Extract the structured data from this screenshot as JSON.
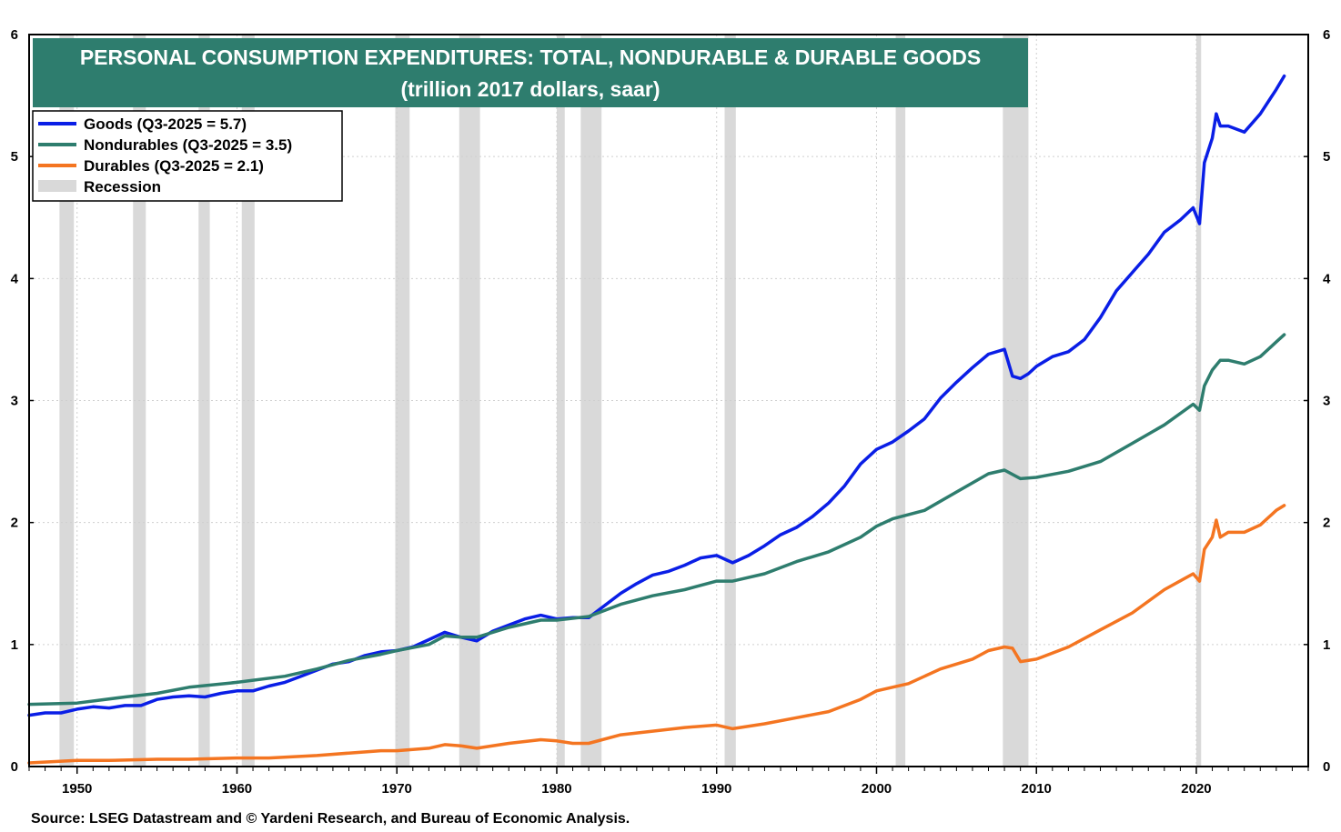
{
  "chart_data": {
    "type": "line",
    "title": "PERSONAL CONSUMPTION EXPENDITURES: TOTAL, NONDURABLE & DURABLE GOODS",
    "subtitle": "(trillion 2017 dollars, saar)",
    "source": "Source: LSEG Datastream and © Yardeni Research, and Bureau of Economic Analysis.",
    "xlim": [
      1947,
      2027
    ],
    "ylim": [
      0,
      6
    ],
    "x_ticks": [
      1950,
      1960,
      1970,
      1980,
      1990,
      2000,
      2010,
      2020
    ],
    "y_ticks": [
      0,
      1,
      2,
      3,
      4,
      5,
      6
    ],
    "grid": true,
    "legend_position": "top-left",
    "recessions": [
      [
        1948.9,
        1949.8
      ],
      [
        1953.5,
        1954.3
      ],
      [
        1957.6,
        1958.3
      ],
      [
        1960.3,
        1961.1
      ],
      [
        1969.9,
        1970.8
      ],
      [
        1973.9,
        1975.2
      ],
      [
        1980.0,
        1980.5
      ],
      [
        1981.5,
        1982.8
      ],
      [
        1990.5,
        1991.2
      ],
      [
        2001.2,
        2001.8
      ],
      [
        2007.9,
        2009.5
      ],
      [
        2020.0,
        2020.3
      ]
    ],
    "colors": {
      "goods": "#0a1ee6",
      "nondurables": "#2e7d6e",
      "durables": "#f47521",
      "recession": "#d9d9d9",
      "title_bg": "#2e7d6e"
    },
    "legend": {
      "goods": "Goods  (Q3-2025 = 5.7)",
      "nondurables": "Nondurables (Q3-2025 = 3.5)",
      "durables": "Durables (Q3-2025 = 2.1)",
      "recession": "Recession"
    },
    "series": [
      {
        "key": "goods",
        "x": [
          1947,
          1948,
          1949,
          1950,
          1951,
          1952,
          1953,
          1954,
          1955,
          1956,
          1957,
          1958,
          1959,
          1960,
          1961,
          1962,
          1963,
          1964,
          1965,
          1966,
          1967,
          1968,
          1969,
          1970,
          1971,
          1972,
          1973,
          1974,
          1975,
          1976,
          1977,
          1978,
          1979,
          1980,
          1981,
          1982,
          1983,
          1984,
          1985,
          1986,
          1987,
          1988,
          1989,
          1990,
          1991,
          1992,
          1993,
          1994,
          1995,
          1996,
          1997,
          1998,
          1999,
          2000,
          2001,
          2002,
          2003,
          2004,
          2005,
          2006,
          2007,
          2008,
          2008.5,
          2009,
          2009.5,
          2010,
          2011,
          2012,
          2013,
          2014,
          2015,
          2016,
          2017,
          2018,
          2019,
          2019.8,
          2020.2,
          2020.5,
          2021,
          2021.25,
          2021.5,
          2022,
          2023,
          2024,
          2025,
          2025.5
        ],
        "values": [
          0.42,
          0.44,
          0.44,
          0.47,
          0.49,
          0.48,
          0.5,
          0.5,
          0.55,
          0.57,
          0.58,
          0.57,
          0.6,
          0.62,
          0.62,
          0.66,
          0.69,
          0.74,
          0.79,
          0.84,
          0.86,
          0.91,
          0.94,
          0.95,
          0.98,
          1.04,
          1.1,
          1.06,
          1.03,
          1.11,
          1.16,
          1.21,
          1.24,
          1.21,
          1.22,
          1.22,
          1.32,
          1.42,
          1.5,
          1.57,
          1.6,
          1.65,
          1.71,
          1.73,
          1.67,
          1.73,
          1.81,
          1.9,
          1.96,
          2.05,
          2.16,
          2.3,
          2.48,
          2.6,
          2.66,
          2.75,
          2.85,
          3.02,
          3.15,
          3.27,
          3.38,
          3.42,
          3.2,
          3.18,
          3.22,
          3.28,
          3.36,
          3.4,
          3.5,
          3.68,
          3.9,
          4.05,
          4.2,
          4.38,
          4.48,
          4.58,
          4.45,
          4.95,
          5.15,
          5.35,
          5.25,
          5.25,
          5.2,
          5.35,
          5.55,
          5.66
        ]
      },
      {
        "key": "nondurables",
        "x": [
          1947,
          1950,
          1953,
          1955,
          1957,
          1960,
          1963,
          1965,
          1967,
          1969,
          1970,
          1972,
          1973,
          1974,
          1975,
          1977,
          1979,
          1980,
          1982,
          1984,
          1986,
          1988,
          1990,
          1991,
          1993,
          1995,
          1997,
          1999,
          2000,
          2001,
          2003,
          2005,
          2007,
          2008,
          2009,
          2010,
          2012,
          2014,
          2016,
          2018,
          2019.8,
          2020.2,
          2020.5,
          2021,
          2021.5,
          2022,
          2023,
          2024,
          2025,
          2025.5
        ],
        "values": [
          0.51,
          0.52,
          0.57,
          0.6,
          0.65,
          0.69,
          0.74,
          0.8,
          0.87,
          0.92,
          0.95,
          1.0,
          1.07,
          1.06,
          1.06,
          1.14,
          1.2,
          1.2,
          1.23,
          1.33,
          1.4,
          1.45,
          1.52,
          1.52,
          1.58,
          1.68,
          1.76,
          1.88,
          1.97,
          2.03,
          2.1,
          2.25,
          2.4,
          2.43,
          2.36,
          2.37,
          2.42,
          2.5,
          2.65,
          2.8,
          2.97,
          2.92,
          3.12,
          3.25,
          3.33,
          3.33,
          3.3,
          3.36,
          3.48,
          3.54
        ]
      },
      {
        "key": "durables",
        "x": [
          1947,
          1950,
          1952,
          1955,
          1957,
          1960,
          1962,
          1965,
          1967,
          1969,
          1970,
          1972,
          1973,
          1974,
          1975,
          1977,
          1979,
          1980,
          1981,
          1982,
          1984,
          1986,
          1988,
          1990,
          1991,
          1993,
          1995,
          1997,
          1999,
          2000,
          2002,
          2004,
          2006,
          2007,
          2008,
          2008.5,
          2009,
          2010,
          2012,
          2014,
          2016,
          2018,
          2019.8,
          2020.2,
          2020.5,
          2021,
          2021.25,
          2021.5,
          2022,
          2023,
          2024,
          2025,
          2025.5
        ],
        "values": [
          0.03,
          0.05,
          0.05,
          0.06,
          0.06,
          0.07,
          0.07,
          0.09,
          0.11,
          0.13,
          0.13,
          0.15,
          0.18,
          0.17,
          0.15,
          0.19,
          0.22,
          0.21,
          0.19,
          0.19,
          0.26,
          0.29,
          0.32,
          0.34,
          0.31,
          0.35,
          0.4,
          0.45,
          0.55,
          0.62,
          0.68,
          0.8,
          0.88,
          0.95,
          0.98,
          0.97,
          0.86,
          0.88,
          0.98,
          1.12,
          1.26,
          1.45,
          1.58,
          1.52,
          1.78,
          1.88,
          2.02,
          1.88,
          1.92,
          1.92,
          1.98,
          2.1,
          2.14
        ]
      }
    ]
  }
}
